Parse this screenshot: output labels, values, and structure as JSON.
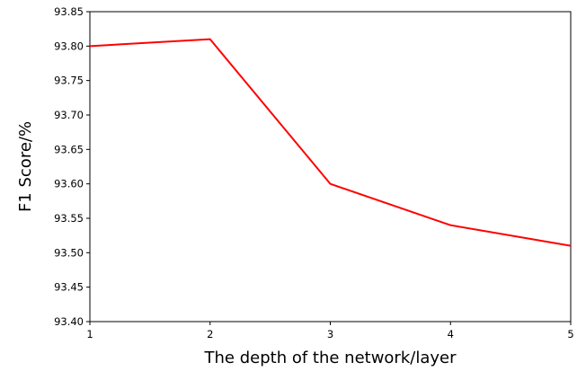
{
  "chart_data": {
    "type": "line",
    "title": "",
    "xlabel": "The depth of the network/layer",
    "ylabel": "F1 Score/%",
    "x": [
      1,
      2,
      3,
      4,
      5
    ],
    "series": [
      {
        "values": [
          93.8,
          93.81,
          93.6,
          93.54,
          93.51
        ],
        "color": "#ff0000"
      }
    ],
    "xlim": [
      1,
      5
    ],
    "ylim": [
      93.4,
      93.85
    ],
    "xticks": [
      "1",
      "2",
      "3",
      "4",
      "5"
    ],
    "yticks": [
      "93.40",
      "93.45",
      "93.50",
      "93.55",
      "93.60",
      "93.65",
      "93.70",
      "93.75",
      "93.80",
      "93.85"
    ],
    "grid": false,
    "legend": "none"
  }
}
